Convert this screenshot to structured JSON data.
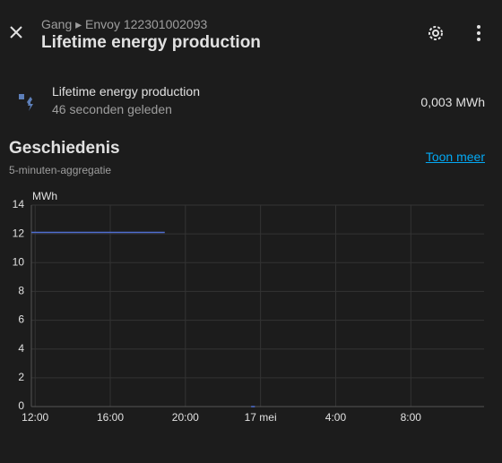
{
  "header": {
    "breadcrumb": "Gang ▸ Envoy 122301002093",
    "title": "Lifetime energy production"
  },
  "entity": {
    "name": "Lifetime energy production",
    "last_changed": "46 seconden geleden",
    "state": "0,003 MWh"
  },
  "history": {
    "title": "Geschiedenis",
    "subtitle": "5-minuten-aggregatie",
    "more_link": "Toon meer"
  },
  "chart_data": {
    "type": "line",
    "ylabel": "MWh",
    "x": [
      -0.2,
      6.9,
      11.0,
      11.5,
      11.7
    ],
    "series": [
      {
        "name": "Lifetime energy production",
        "color": "#4f6ed0",
        "values": [
          12.1,
          12.1,
          null,
          0.003,
          0.003
        ]
      }
    ],
    "xlim": [
      -0.2,
      23.9
    ],
    "xticks": [
      {
        "value": 0,
        "label": "12:00"
      },
      {
        "value": 4,
        "label": "16:00"
      },
      {
        "value": 8,
        "label": "20:00"
      },
      {
        "value": 12,
        "label": "17 mei"
      },
      {
        "value": 16,
        "label": "4:00"
      },
      {
        "value": 20,
        "label": "8:00"
      }
    ],
    "ylim": [
      0,
      14
    ],
    "yticks": [
      0,
      2,
      4,
      6,
      8,
      10,
      12,
      14
    ],
    "grid": true
  }
}
